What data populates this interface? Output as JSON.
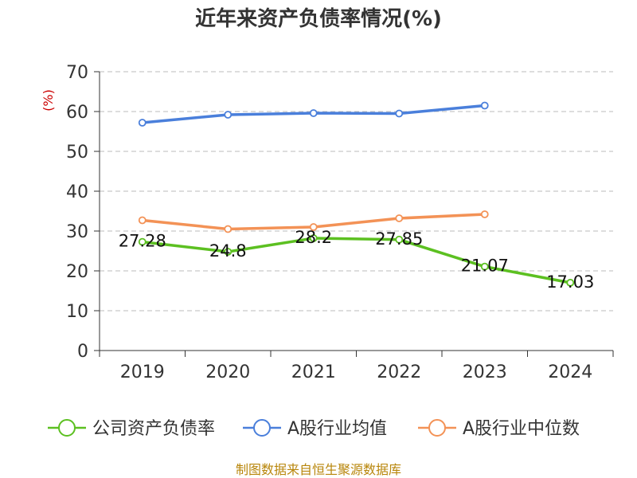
{
  "chart_data": {
    "type": "line",
    "title": "近年来资产负债率情况(%)",
    "y_unit": "(%)",
    "categories": [
      "2019",
      "2020",
      "2021",
      "2022",
      "2023",
      "2024"
    ],
    "ylim": [
      0,
      70
    ],
    "yticks": [
      0,
      10,
      20,
      30,
      40,
      50,
      60,
      70
    ],
    "grid": true,
    "legend_position": "bottom",
    "series": [
      {
        "name": "公司资产负债率",
        "color": "#5cc021",
        "values": [
          27.28,
          24.8,
          28.2,
          27.85,
          21.07,
          17.03
        ],
        "labels": [
          "27.28",
          "24.8",
          "28.2",
          "27.85",
          "21.07",
          "17.03"
        ]
      },
      {
        "name": "A股行业均值",
        "color": "#4a7fdb",
        "values": [
          57.2,
          59.2,
          59.6,
          59.5,
          61.5,
          null
        ]
      },
      {
        "name": "A股行业中位数",
        "color": "#f39256",
        "values": [
          32.7,
          30.5,
          31.0,
          33.2,
          34.2,
          null
        ]
      }
    ]
  },
  "source": "制图数据来自恒生聚源数据库"
}
